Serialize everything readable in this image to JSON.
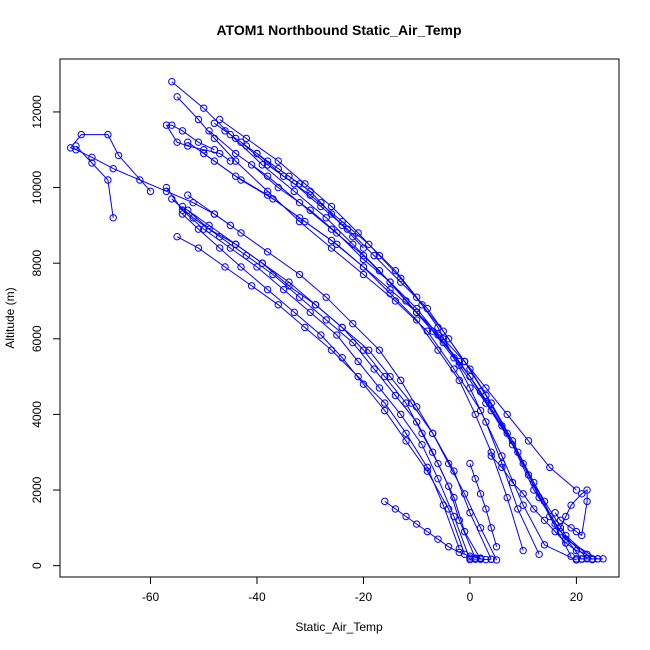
{
  "chart_data": {
    "type": "line",
    "title": "ATOM1 Northbound Static_Air_Temp",
    "xlabel": "Static_Air_Temp",
    "ylabel": "Altitude (m)",
    "xlim": [
      -77,
      28
    ],
    "ylim": [
      -300,
      13400
    ],
    "xticks": [
      -60,
      -40,
      -20,
      0,
      20
    ],
    "yticks": [
      0,
      2000,
      4000,
      6000,
      8000,
      10000,
      12000
    ],
    "grid": false,
    "legend": "none",
    "marker": "open-circle",
    "line_color": "#0000ff",
    "series": [
      {
        "x": [
          20,
          14,
          10,
          6,
          2,
          -3,
          -8,
          -14,
          -20,
          -26,
          -32,
          -38,
          -44,
          -48,
          -51,
          -55
        ],
        "y": [
          150,
          550,
          1600,
          2900,
          4100,
          5200,
          6200,
          7000,
          7700,
          8400,
          9100,
          9900,
          10700,
          11300,
          11800,
          12400
        ]
      },
      {
        "x": [
          22,
          17,
          12,
          8,
          3,
          -2,
          -7,
          -12,
          -17,
          -22,
          -27,
          -33,
          -39,
          -45,
          -50,
          -56
        ],
        "y": [
          200,
          900,
          2000,
          3200,
          4300,
          5300,
          6200,
          7000,
          7800,
          8500,
          9200,
          9900,
          10600,
          11400,
          12100,
          12800
        ]
      },
      {
        "x": [
          19,
          15,
          11,
          7,
          3,
          -1,
          -5,
          -9,
          -13,
          -17,
          -21,
          -26,
          -31,
          -36,
          -42,
          -47
        ],
        "y": [
          250,
          1300,
          2400,
          3500,
          4500,
          5400,
          6200,
          6900,
          7600,
          8200,
          8800,
          9500,
          10100,
          10700,
          11300,
          11800
        ]
      },
      {
        "x": [
          24,
          18,
          13,
          9,
          4,
          0,
          -5,
          -10,
          -15,
          -20,
          -26,
          -32,
          -38,
          -44,
          -49
        ],
        "y": [
          180,
          700,
          1800,
          3000,
          4100,
          5000,
          5900,
          6700,
          7500,
          8200,
          8900,
          9600,
          10300,
          10900,
          11500
        ]
      },
      {
        "x": [
          21,
          16,
          12,
          8,
          4,
          0,
          -4,
          -8,
          -13,
          -18,
          -23,
          -28,
          -33,
          -38,
          -43
        ],
        "y": [
          170,
          1100,
          2200,
          3300,
          4300,
          5200,
          6000,
          6800,
          7500,
          8200,
          8900,
          9500,
          10100,
          10600,
          11200
        ]
      },
      {
        "x": [
          13,
          9,
          6,
          3,
          0,
          -3,
          -6,
          -10,
          -14,
          -19,
          -24,
          -30,
          -35,
          -40
        ],
        "y": [
          300,
          1500,
          2700,
          3800,
          4700,
          5500,
          6300,
          7100,
          7800,
          8500,
          9100,
          9800,
          10300,
          10900
        ]
      },
      {
        "x": [
          10,
          7,
          4,
          1,
          -2,
          -6,
          -10,
          -15,
          -20,
          -25,
          -31,
          -37,
          -43,
          -48,
          -53
        ],
        "y": [
          400,
          1800,
          3000,
          4000,
          4900,
          5700,
          6500,
          7200,
          7900,
          8500,
          9100,
          9700,
          10200,
          10700,
          11200
        ]
      },
      {
        "x": [
          23,
          18,
          14,
          10,
          6,
          2,
          -2,
          -6,
          -10,
          -15,
          -20,
          -25,
          -30,
          -36,
          -41
        ],
        "y": [
          160,
          800,
          1700,
          2700,
          3700,
          4600,
          5400,
          6100,
          6800,
          7500,
          8100,
          8800,
          9400,
          10000,
          10600
        ]
      },
      {
        "x": [
          20,
          15,
          11,
          7,
          3,
          -1,
          -5,
          -10,
          -15,
          -20,
          -26,
          -32,
          -38,
          -44,
          -50
        ],
        "y": [
          2000,
          2600,
          3300,
          4000,
          4700,
          5400,
          6000,
          6700,
          7300,
          7900,
          8600,
          9200,
          9800,
          10300,
          10900
        ]
      },
      {
        "x": [
          5,
          2,
          -1,
          -4,
          -7,
          -10,
          -13,
          -17,
          -22,
          -27,
          -32,
          -38,
          -43,
          -48,
          -53
        ],
        "y": [
          150,
          1000,
          1900,
          2700,
          3500,
          4200,
          4900,
          5700,
          6400,
          7100,
          7700,
          8300,
          8800,
          9300,
          9800
        ]
      },
      {
        "x": [
          2,
          -1,
          -3,
          -6,
          -9,
          -12,
          -16,
          -20,
          -24,
          -29,
          -34,
          -39,
          -44,
          -49,
          -54
        ],
        "y": [
          170,
          900,
          1800,
          2700,
          3500,
          4300,
          5000,
          5700,
          6300,
          6900,
          7500,
          8000,
          8500,
          9000,
          9500
        ]
      },
      {
        "x": [
          1,
          -2,
          -4,
          -7,
          -10,
          -14,
          -18,
          -22,
          -27,
          -32,
          -37,
          -42,
          -47,
          -52,
          -56
        ],
        "y": [
          200,
          1200,
          2100,
          3000,
          3800,
          4500,
          5200,
          5900,
          6500,
          7100,
          7700,
          8200,
          8700,
          9200,
          9700
        ]
      },
      {
        "x": [
          0,
          -3,
          -6,
          -9,
          -13,
          -17,
          -21,
          -25,
          -30,
          -35,
          -40,
          -45,
          -50,
          -54,
          -57
        ],
        "y": [
          160,
          1300,
          2300,
          3200,
          4000,
          4700,
          5400,
          6100,
          6700,
          7300,
          7900,
          8400,
          8900,
          9400,
          10000
        ]
      },
      {
        "x": [
          -1,
          -4,
          -8,
          -12,
          -16,
          -20,
          -24,
          -28,
          -33,
          -38,
          -43,
          -47,
          -51,
          -54
        ],
        "y": [
          300,
          1500,
          2500,
          3300,
          4100,
          4800,
          5500,
          6100,
          6700,
          7300,
          7900,
          8400,
          8900,
          9300
        ]
      },
      {
        "x": [
          4,
          0,
          -3,
          -7,
          -11,
          -15,
          -19,
          -24,
          -29,
          -34,
          -39,
          -44,
          -49,
          -53
        ],
        "y": [
          170,
          1400,
          2500,
          3500,
          4300,
          5000,
          5700,
          6300,
          6900,
          7400,
          8000,
          8500,
          8900,
          9400
        ]
      },
      {
        "x": [
          -2,
          -5,
          -8,
          -12,
          -16,
          -21,
          -26,
          -31,
          -36,
          -41,
          -46,
          -51,
          -55
        ],
        "y": [
          450,
          1600,
          2600,
          3500,
          4300,
          5000,
          5700,
          6300,
          6900,
          7400,
          7900,
          8400,
          8700
        ]
      },
      {
        "x": [
          -45,
          -48,
          -52,
          -57,
          -62,
          -67,
          -71,
          -74,
          -75,
          -73,
          -68,
          -66,
          -60
        ],
        "y": [
          9000,
          9300,
          9600,
          9900,
          10200,
          10500,
          10800,
          11000,
          11050,
          11400,
          11400,
          10850,
          9900
        ]
      },
      {
        "x": [
          -67,
          -68,
          -71,
          -74
        ],
        "y": [
          9200,
          10200,
          10650,
          11100
        ]
      },
      {
        "x": [
          -45,
          -47,
          -50,
          -53,
          -55,
          -57,
          -56,
          -54,
          -51,
          -48
        ],
        "y": [
          10700,
          10900,
          11000,
          11100,
          11200,
          11650,
          11650,
          11500,
          11200,
          11000
        ]
      },
      {
        "x": [
          -48,
          -46,
          -44,
          -42,
          -40,
          -38,
          -36,
          -34,
          -32,
          -30,
          -28,
          -26,
          -24,
          -22,
          -20
        ],
        "y": [
          11700,
          11500,
          11300,
          11100,
          10900,
          10700,
          10500,
          10300,
          10100,
          9900,
          9600,
          9300,
          9000,
          8700,
          8400
        ]
      },
      {
        "x": [
          16,
          17,
          19,
          20,
          21,
          22,
          22,
          21,
          19,
          18,
          17
        ],
        "y": [
          1400,
          1200,
          1000,
          900,
          800,
          1700,
          2000,
          1900,
          1600,
          1300,
          1000
        ]
      },
      {
        "x": [
          4,
          6,
          8,
          10,
          12,
          14,
          16,
          18,
          20,
          22
        ],
        "y": [
          2900,
          2600,
          2200,
          1900,
          1500,
          1200,
          900,
          600,
          400,
          300
        ]
      },
      {
        "x": [
          0,
          1,
          2,
          3,
          4,
          5
        ],
        "y": [
          2700,
          2300,
          1900,
          1500,
          1000,
          500
        ]
      },
      {
        "x": [
          -16,
          -14,
          -12,
          -10,
          -8,
          -6,
          -4,
          -2,
          0,
          2
        ],
        "y": [
          1700,
          1500,
          1300,
          1100,
          900,
          700,
          500,
          350,
          250,
          200
        ]
      },
      {
        "x": [
          20,
          21,
          22,
          23,
          24,
          25
        ],
        "y": [
          180,
          180,
          180,
          180,
          180,
          180
        ]
      },
      {
        "x": [
          0,
          1,
          2,
          3,
          4
        ],
        "y": [
          200,
          170,
          180,
          160,
          170
        ]
      }
    ]
  }
}
